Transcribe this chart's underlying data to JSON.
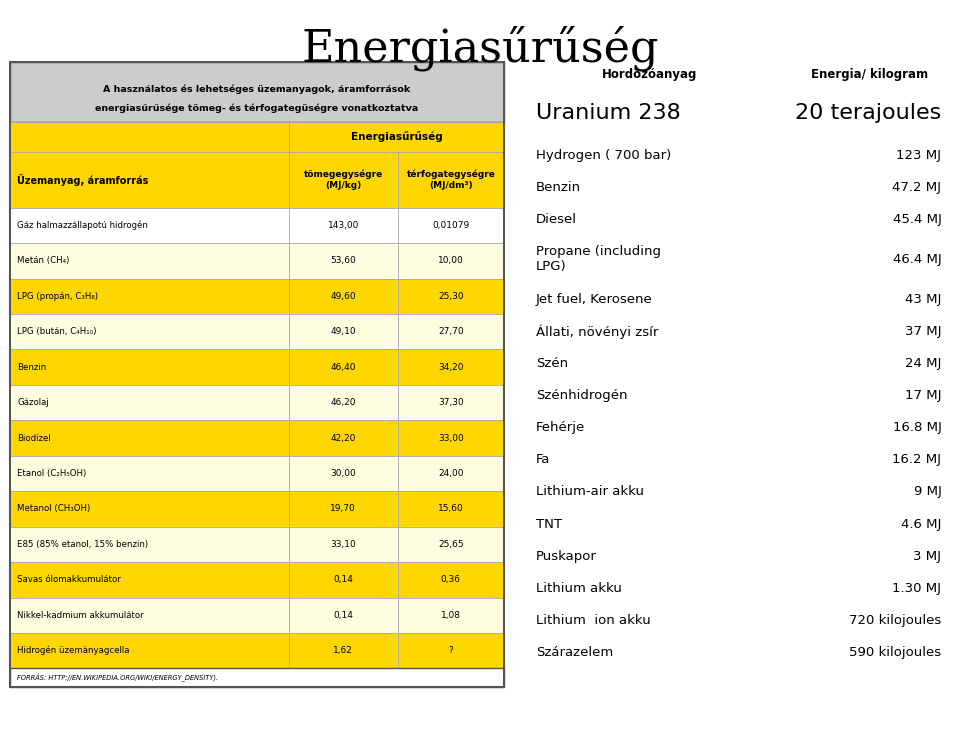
{
  "title": "Energiasűrűség",
  "title_fontsize": 32,
  "bg_color": "#ffffff",
  "left_table": {
    "caption_line1": "A használatos és lehetséges üzemanyagok, áramforrások",
    "caption_line2": "energiasűrűsége tömeg- és térfogategüségre vonatkoztatva",
    "header1_text": "Energiasűrűség",
    "col0_header": "Üzemanyag, áramforrás",
    "col1_header": "tömegegüségre\n(MJ/kg)",
    "col2_header": "térfogategüségre\n(MJ/dm³)",
    "rows": [
      {
        "name": "Gáz halmazzállapotú hidrogén",
        "v1": "143,00",
        "v2": "0,01079",
        "color": "#ffffff"
      },
      {
        "name": "Metán (CH₄)",
        "v1": "53,60",
        "v2": "10,00",
        "color": "#fffde0"
      },
      {
        "name": "LPG (propán, C₃H₈)",
        "v1": "49,60",
        "v2": "25,30",
        "color": "#ffd700"
      },
      {
        "name": "LPG (bután, C₄H₁₀)",
        "v1": "49,10",
        "v2": "27,70",
        "color": "#fffde0"
      },
      {
        "name": "Benzin",
        "v1": "46,40",
        "v2": "34,20",
        "color": "#ffd700"
      },
      {
        "name": "Gázolaj",
        "v1": "46,20",
        "v2": "37,30",
        "color": "#fffde0"
      },
      {
        "name": "Biodízel",
        "v1": "42,20",
        "v2": "33,00",
        "color": "#ffd700"
      },
      {
        "name": "Etanol (C₂H₅OH)",
        "v1": "30,00",
        "v2": "24,00",
        "color": "#fffde0"
      },
      {
        "name": "Metanol (CH₃OH)",
        "v1": "19,70",
        "v2": "15,60",
        "color": "#ffd700"
      },
      {
        "name": "E85 (85% etanol, 15% benzin)",
        "v1": "33,10",
        "v2": "25,65",
        "color": "#fffde0"
      },
      {
        "name": "Savas ólomakkumulátor",
        "v1": "0,14",
        "v2": "0,36",
        "color": "#ffd700"
      },
      {
        "name": "Nikkel-kadmium akkumulátor",
        "v1": "0,14",
        "v2": "1,08",
        "color": "#fffde0"
      },
      {
        "name": "Hidrogén üzemànyagcella",
        "v1": "1,62",
        "v2": "?",
        "color": "#ffd700"
      }
    ],
    "footer": "FORRÁS: HTTP://EN.WIKIPEDIA.ORG/WIKI/ENERGY_DENSITY).",
    "caption_bg": "#cccccc",
    "header_bg": "#ffd700",
    "border_color": "#555555"
  },
  "right_table": {
    "col1_header": "Hordozóanyag",
    "col2_header": "Energia/ kilogram",
    "rows": [
      {
        "name": "Uranium 238",
        "value": "20 terajoules",
        "large": true
      },
      {
        "name": "Hydrogen ( 700 bar)",
        "value": "123 MJ",
        "large": false
      },
      {
        "name": "Benzin",
        "value": "47.2 MJ",
        "large": false
      },
      {
        "name": "Diesel",
        "value": "45.4 MJ",
        "large": false
      },
      {
        "name": "Propane (including\nLPG)",
        "value": "46.4 MJ",
        "large": false
      },
      {
        "name": "Jet fuel, Kerosene",
        "value": "43 MJ",
        "large": false
      },
      {
        "name": "Állati, növényi zsír",
        "value": "37 MJ",
        "large": false
      },
      {
        "name": "Szén",
        "value": "24 MJ",
        "large": false
      },
      {
        "name": "Szénhidrogén",
        "value": "17 MJ",
        "large": false
      },
      {
        "name": "Fehérje",
        "value": "16.8 MJ",
        "large": false
      },
      {
        "name": "Fa",
        "value": "16.2 MJ",
        "large": false
      },
      {
        "name": "Lithium-air akku",
        "value": "9 MJ",
        "large": false
      },
      {
        "name": "TNT",
        "value": "4.6 MJ",
        "large": false
      },
      {
        "name": "Puskapor",
        "value": "3 MJ",
        "large": false
      },
      {
        "name": "Lithium akku",
        "value": "1.30 MJ",
        "large": false
      },
      {
        "name": "Lithium  ion akku",
        "value": "720 kilojoules",
        "large": false
      },
      {
        "name": "Szárazelem",
        "value": "590 kilojoules",
        "large": false
      }
    ]
  }
}
